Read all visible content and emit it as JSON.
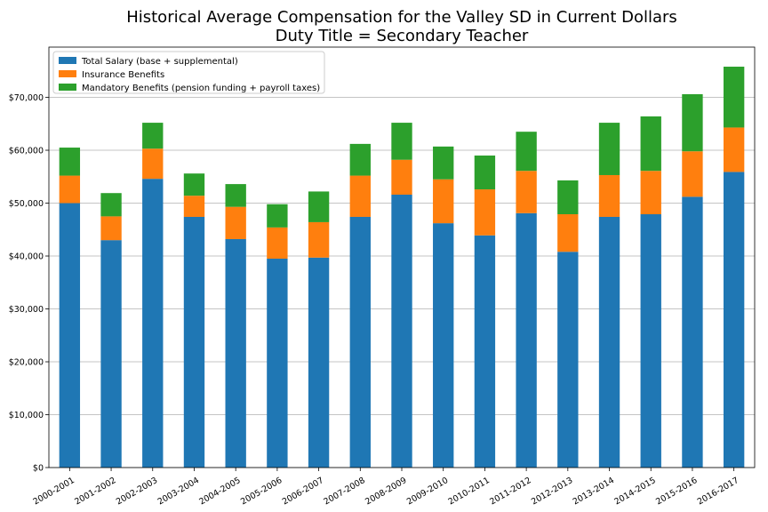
{
  "chart_data": {
    "type": "bar",
    "stacked": true,
    "title": "Historical Average Compensation for the Valley SD in Current Dollars",
    "subtitle": "Duty Title = Secondary Teacher",
    "xlabel": "",
    "ylabel": "",
    "ylim": [
      0,
      79500
    ],
    "yticks": [
      "$0",
      "$10,000",
      "$20,000",
      "$30,000",
      "$40,000",
      "$50,000",
      "$60,000",
      "$70,000"
    ],
    "ytick_values": [
      0,
      10000,
      20000,
      30000,
      40000,
      50000,
      60000,
      70000
    ],
    "grid": "horizontal",
    "legend_position": "top-left",
    "categories": [
      "2000-2001",
      "2001-2002",
      "2002-2003",
      "2003-2004",
      "2004-2005",
      "2005-2006",
      "2006-2007",
      "2007-2008",
      "2008-2009",
      "2009-2010",
      "2010-2011",
      "2011-2012",
      "2012-2013",
      "2013-2014",
      "2014-2015",
      "2015-2016",
      "2016-2017"
    ],
    "series": [
      {
        "name": "Total Salary (base + supplemental)",
        "color": "#1f77b4",
        "values": [
          50000,
          43000,
          54600,
          47400,
          43200,
          39500,
          39700,
          47400,
          51600,
          46200,
          43900,
          48100,
          40800,
          47400,
          47900,
          51200,
          55900
        ]
      },
      {
        "name": "Insurance Benefits",
        "color": "#ff7f0e",
        "values": [
          5200,
          4500,
          5700,
          4000,
          6100,
          5900,
          6700,
          7800,
          6600,
          8300,
          8700,
          8000,
          7100,
          7900,
          8200,
          8600,
          8400
        ]
      },
      {
        "name": "Mandatory Benefits (pension funding + payroll taxes)",
        "color": "#2ca02c",
        "values": [
          5300,
          4400,
          4900,
          4200,
          4300,
          4400,
          5800,
          6000,
          7000,
          6200,
          6400,
          7400,
          6400,
          9900,
          10300,
          10800,
          11500
        ]
      }
    ]
  }
}
